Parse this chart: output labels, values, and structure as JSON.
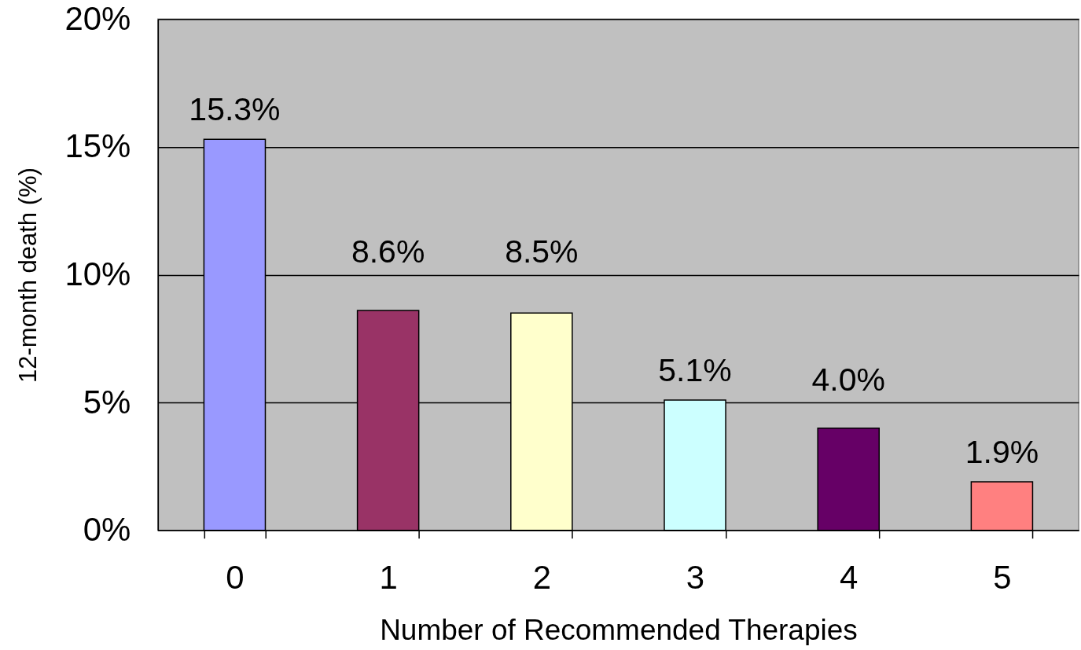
{
  "chart_data": {
    "type": "bar",
    "xlabel": "Number of Recommended Therapies",
    "ylabel": "12-month death (%)",
    "categories": [
      "0",
      "1",
      "2",
      "3",
      "4",
      "5"
    ],
    "values": [
      15.3,
      8.6,
      8.5,
      5.1,
      4.0,
      1.9
    ],
    "colors": [
      "#9999ff",
      "#993366",
      "#ffffcc",
      "#ccffff",
      "#660066",
      "#ff8080"
    ],
    "value_labels": [
      "15.3%",
      "8.6%",
      "8.5%",
      "5.1%",
      "4.0%",
      "1.9%"
    ],
    "ylim": [
      0,
      20
    ],
    "yticks": [
      {
        "value": 0,
        "label": "0%"
      },
      {
        "value": 5,
        "label": "5%"
      },
      {
        "value": 10,
        "label": "10%"
      },
      {
        "value": 15,
        "label": "15%"
      },
      {
        "value": 20,
        "label": "20%"
      }
    ],
    "grid": "y"
  }
}
